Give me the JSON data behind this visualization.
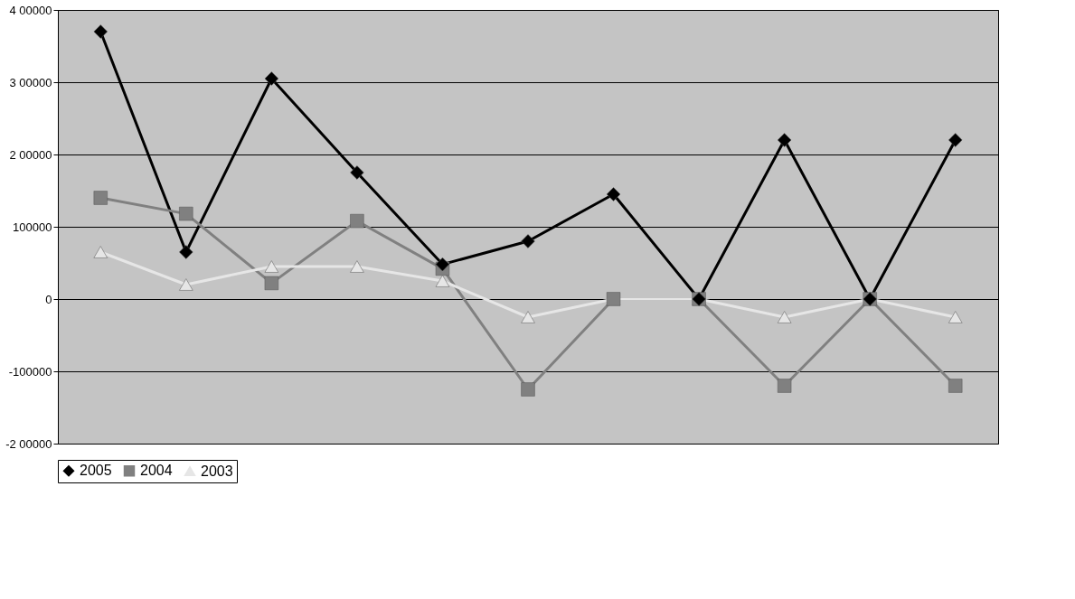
{
  "chart_data": {
    "type": "line",
    "categories": [
      null,
      null,
      null,
      null,
      null,
      null,
      null,
      null,
      null,
      null,
      null
    ],
    "series": [
      {
        "name": "2005",
        "color": "#000000",
        "marker": "diamond",
        "values": [
          370000,
          65000,
          305000,
          175000,
          48000,
          80000,
          145000,
          0,
          220000,
          0,
          220000
        ]
      },
      {
        "name": "2004",
        "color": "#808080",
        "marker": "square",
        "values": [
          140000,
          118000,
          22000,
          108000,
          42000,
          -125000,
          0,
          0,
          -120000,
          0,
          -120000
        ]
      },
      {
        "name": "2003",
        "color": "#e6e6e6",
        "marker": "triangle",
        "values": [
          65000,
          20000,
          45000,
          45000,
          25000,
          -25000,
          0,
          0,
          -25000,
          0,
          -25000
        ]
      }
    ],
    "ylim": [
      -200000,
      400000
    ],
    "yticks": [
      {
        "value": -200000,
        "label": "-2 00000"
      },
      -100000,
      0,
      100000,
      {
        "value": 200000,
        "label": "2 00000"
      },
      {
        "value": 300000,
        "label": "3 00000"
      },
      {
        "value": 400000,
        "label": "4 00000"
      }
    ],
    "grid": "y",
    "legend": "bottom",
    "line_style": "solid"
  }
}
